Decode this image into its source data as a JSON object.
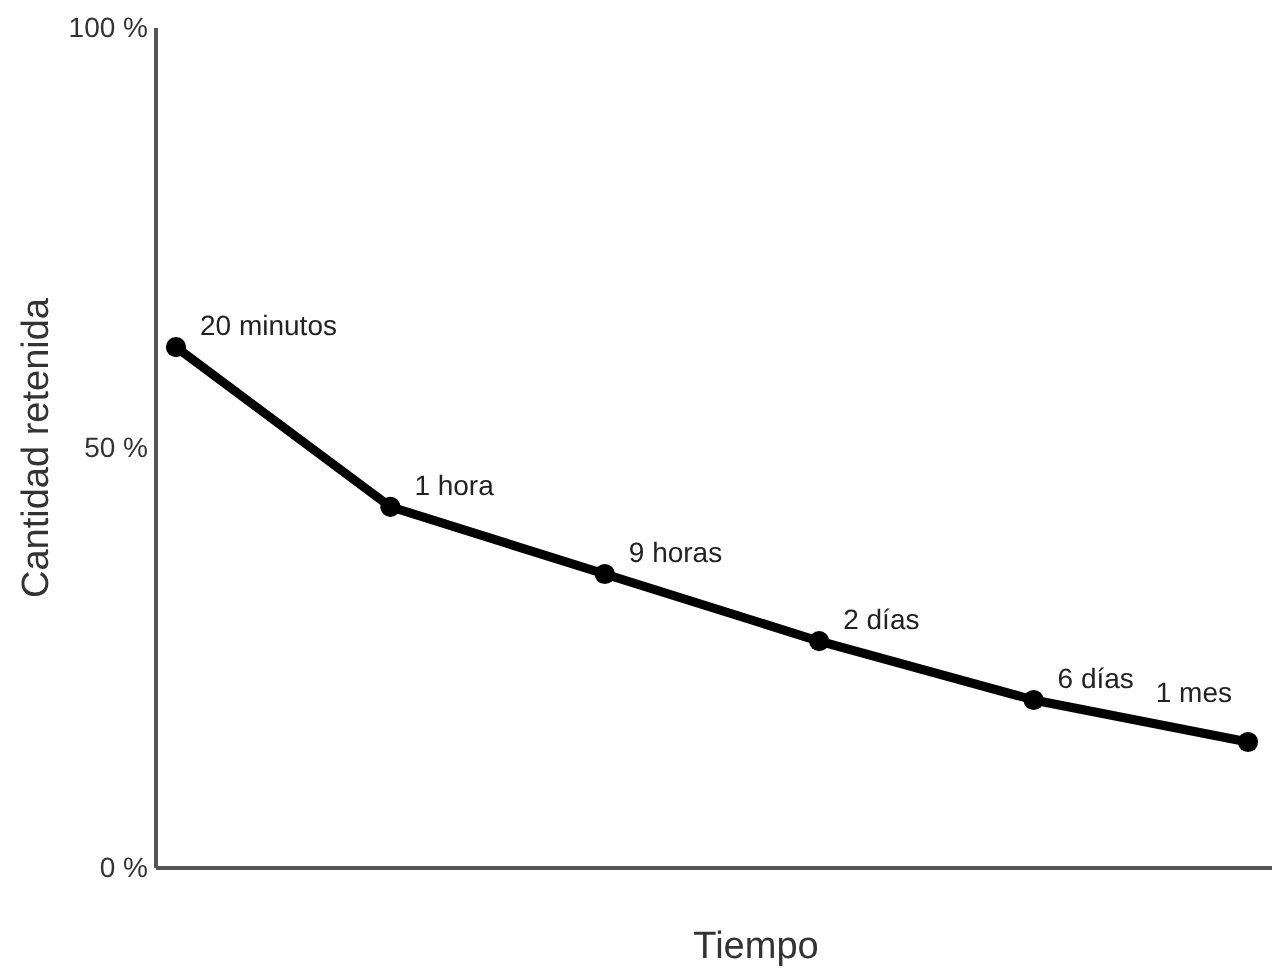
{
  "chart_data": {
    "type": "line",
    "xlabel": "Tiempo",
    "ylabel": "Cantidad retenida",
    "categories": [
      null,
      null,
      null,
      null,
      null,
      null
    ],
    "ylim": [
      0,
      100
    ],
    "yticks": [
      {
        "value": 0,
        "label": "0 %"
      },
      {
        "value": 50,
        "label": "50 %"
      },
      {
        "value": 100,
        "label": "100 %"
      }
    ],
    "tick_labels": "y",
    "series": [
      {
        "color": "#000000",
        "values": [
          62,
          43,
          35,
          27,
          20,
          15
        ]
      }
    ],
    "marker": "circle",
    "line_style": "solid",
    "annotations": [
      "20 minutos",
      "1 hora",
      "9 horas",
      "2 días",
      "6 días",
      "1 mes"
    ]
  }
}
